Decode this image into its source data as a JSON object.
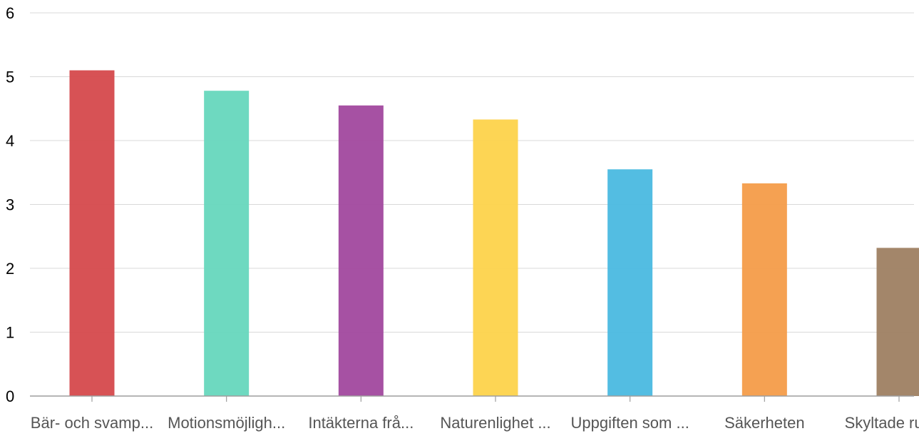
{
  "chart_data": {
    "type": "bar",
    "categories": [
      "Bär- och svamp...",
      "Motionsmöjligh...",
      "Intäkterna frå...",
      "Naturenlighet ...",
      "Uppgiften som ...",
      "Säkerheten",
      "Skyltade rutte..."
    ],
    "values": [
      5.1,
      4.78,
      4.55,
      4.33,
      3.55,
      3.33,
      2.32
    ],
    "colors": [
      "#d64c4f",
      "#69d8be",
      "#a34ba0",
      "#fdd44e",
      "#4dbbe1",
      "#f59e4c",
      "#a08265"
    ],
    "ylim": [
      0,
      6
    ],
    "yticks": [
      "0",
      "1",
      "2",
      "3",
      "4",
      "5",
      "6"
    ],
    "grid": true,
    "legend": "none"
  }
}
